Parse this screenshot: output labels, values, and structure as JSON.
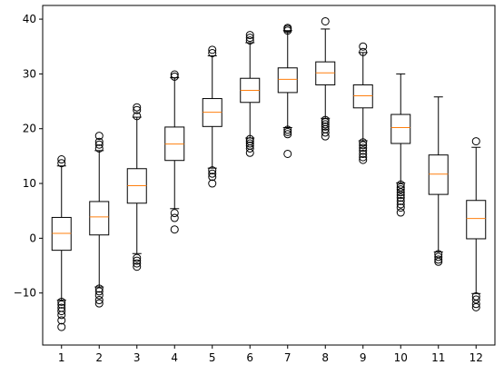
{
  "chart_data": {
    "type": "box",
    "title": "",
    "xlabel": "",
    "ylabel": "",
    "ylim": [
      -19.5,
      42.5
    ],
    "yticks": [
      -10,
      0,
      10,
      20,
      30,
      40
    ],
    "categories": [
      "1",
      "2",
      "3",
      "4",
      "5",
      "6",
      "7",
      "8",
      "9",
      "10",
      "11",
      "12"
    ],
    "grid": false,
    "colors": {
      "box": "#000000",
      "median": "#ff7f0e",
      "whisker": "#000000",
      "flier": "#000000"
    },
    "boxes": [
      {
        "label": "1",
        "q1": -2.2,
        "median": 0.9,
        "q3": 3.8,
        "whislo": -11.3,
        "whishi": 13.2,
        "fliers": [
          14.4,
          13.7,
          -11.6,
          -12.1,
          -12.7,
          -13.3,
          -14.0,
          -15.0,
          -16.2
        ]
      },
      {
        "label": "2",
        "q1": 0.6,
        "median": 3.9,
        "q3": 6.7,
        "whislo": -8.9,
        "whishi": 16.0,
        "fliers": [
          18.7,
          17.6,
          17.1,
          16.4,
          -9.2,
          -9.7,
          -10.4,
          -11.3,
          -11.9
        ]
      },
      {
        "label": "3",
        "q1": 6.4,
        "median": 9.6,
        "q3": 12.7,
        "whislo": -2.8,
        "whishi": 22.1,
        "fliers": [
          23.9,
          23.4,
          22.3,
          -3.6,
          -4.1,
          -4.6,
          -5.2
        ]
      },
      {
        "label": "4",
        "q1": 14.2,
        "median": 17.2,
        "q3": 20.3,
        "whislo": 5.4,
        "whishi": 29.3,
        "fliers": [
          29.9,
          29.5,
          4.6,
          3.7,
          1.6
        ]
      },
      {
        "label": "5",
        "q1": 20.4,
        "median": 23.0,
        "q3": 25.5,
        "whislo": 12.8,
        "whishi": 33.3,
        "fliers": [
          34.4,
          33.8,
          12.4,
          11.8,
          11.2,
          10.0
        ]
      },
      {
        "label": "6",
        "q1": 24.8,
        "median": 27.0,
        "q3": 29.2,
        "whislo": 18.3,
        "whishi": 35.7,
        "fliers": [
          37.1,
          36.6,
          36.1,
          18.1,
          17.7,
          17.3,
          16.9,
          16.4,
          15.6
        ]
      },
      {
        "label": "7",
        "q1": 26.6,
        "median": 29.0,
        "q3": 31.1,
        "whislo": 20.2,
        "whishi": 37.9,
        "fliers": [
          38.4,
          38.2,
          37.9,
          19.8,
          19.4,
          19.0,
          15.4
        ]
      },
      {
        "label": "8",
        "q1": 28.0,
        "median": 30.2,
        "q3": 32.2,
        "whislo": 21.9,
        "whishi": 38.2,
        "fliers": [
          39.6,
          21.6,
          21.2,
          20.8,
          20.4,
          19.9,
          19.3,
          18.6
        ]
      },
      {
        "label": "9",
        "q1": 23.8,
        "median": 26.0,
        "q3": 28.0,
        "whislo": 17.8,
        "whishi": 33.9,
        "fliers": [
          35.0,
          34.0,
          17.5,
          17.0,
          16.5,
          16.0,
          15.4,
          14.8,
          14.3
        ]
      },
      {
        "label": "10",
        "q1": 17.3,
        "median": 20.2,
        "q3": 22.6,
        "whislo": 10.1,
        "whishi": 30.0,
        "fliers": [
          9.8,
          9.3,
          8.9,
          8.4,
          7.9,
          7.4,
          6.8,
          6.2,
          5.6,
          4.7
        ]
      },
      {
        "label": "11",
        "q1": 8.0,
        "median": 11.7,
        "q3": 15.2,
        "whislo": -2.5,
        "whishi": 25.8,
        "fliers": [
          -2.9,
          -3.4,
          -3.9,
          -4.3
        ]
      },
      {
        "label": "12",
        "q1": -0.1,
        "median": 3.6,
        "q3": 6.9,
        "whislo": -10.1,
        "whishi": 16.6,
        "fliers": [
          17.7,
          -10.6,
          -11.2,
          -12.0,
          -12.6
        ]
      }
    ]
  }
}
